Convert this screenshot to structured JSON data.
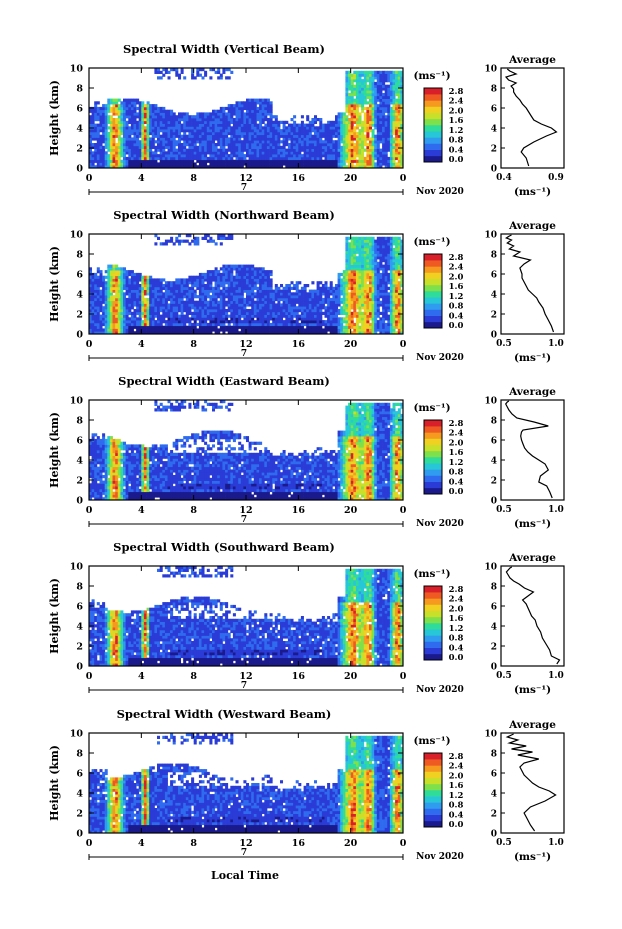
{
  "page": {
    "bottom_label": "Local Time"
  },
  "colors": {
    "palette": [
      "#1a1a8c",
      "#2a3bd6",
      "#2f6bef",
      "#2f9cef",
      "#27c7d8",
      "#2fdc9a",
      "#7ee04a",
      "#c8e02a",
      "#f0d020",
      "#f59a1f",
      "#ef5a23",
      "#d91f2a"
    ]
  },
  "panels": [
    {
      "title": "Spectral Width (Vertical Beam)",
      "ylabel": "Height (km)",
      "yticks": [
        "0",
        "2",
        "4",
        "6",
        "8",
        "10"
      ],
      "xticks": [
        "0",
        "4",
        "8",
        "12",
        "16",
        "20",
        "0"
      ],
      "day_marker": "7",
      "month_label": "Nov 2020",
      "cbar_unit": "(ms⁻¹)",
      "cbar_ticks": [
        "0.0",
        "0.4",
        "0.8",
        "1.2",
        "1.6",
        "2.0",
        "2.4",
        "2.8"
      ],
      "avg_title": "Average",
      "avg_xticks": [
        "0.4",
        "0.9"
      ],
      "avg_yticks": [
        "0",
        "2",
        "4",
        "6",
        "8",
        "10"
      ],
      "avg_xlabel": "(ms⁻¹)"
    },
    {
      "title": "Spectral Width (Northward Beam)",
      "ylabel": "Height (km)",
      "yticks": [
        "0",
        "2",
        "4",
        "6",
        "8",
        "10"
      ],
      "xticks": [
        "0",
        "4",
        "8",
        "12",
        "16",
        "20",
        "0"
      ],
      "day_marker": "7",
      "month_label": "Nov 2020",
      "cbar_unit": "(ms⁻¹)",
      "cbar_ticks": [
        "0.0",
        "0.4",
        "0.8",
        "1.2",
        "1.6",
        "2.0",
        "2.4",
        "2.8"
      ],
      "avg_title": "Average",
      "avg_xticks": [
        "0.5",
        "1.0"
      ],
      "avg_yticks": [
        "0",
        "2",
        "4",
        "6",
        "8",
        "10"
      ],
      "avg_xlabel": "(ms⁻¹)"
    },
    {
      "title": "Spectral Width (Eastward Beam)",
      "ylabel": "Height (km)",
      "yticks": [
        "0",
        "2",
        "4",
        "6",
        "8",
        "10"
      ],
      "xticks": [
        "0",
        "4",
        "8",
        "12",
        "16",
        "20",
        "0"
      ],
      "day_marker": "7",
      "month_label": "Nov 2020",
      "cbar_unit": "(ms⁻¹)",
      "cbar_ticks": [
        "0.0",
        "0.4",
        "0.8",
        "1.2",
        "1.6",
        "2.0",
        "2.4",
        "2.8"
      ],
      "avg_title": "Average",
      "avg_xticks": [
        "0.5",
        "1.0"
      ],
      "avg_yticks": [
        "0",
        "2",
        "4",
        "6",
        "8",
        "10"
      ],
      "avg_xlabel": "(ms⁻¹)"
    },
    {
      "title": "Spectral Width (Southward Beam)",
      "ylabel": "Height (km)",
      "yticks": [
        "0",
        "2",
        "4",
        "6",
        "8",
        "10"
      ],
      "xticks": [
        "0",
        "4",
        "8",
        "12",
        "16",
        "20",
        "0"
      ],
      "day_marker": "7",
      "month_label": "Nov 2020",
      "cbar_unit": "(ms⁻¹)",
      "cbar_ticks": [
        "0.0",
        "0.4",
        "0.8",
        "1.2",
        "1.6",
        "2.0",
        "2.4",
        "2.8"
      ],
      "avg_title": "Average",
      "avg_xticks": [
        "0.5",
        "1.0"
      ],
      "avg_yticks": [
        "0",
        "2",
        "4",
        "6",
        "8",
        "10"
      ],
      "avg_xlabel": "(ms⁻¹)"
    },
    {
      "title": "Spectral Width (Westward Beam)",
      "ylabel": "Height (km)",
      "yticks": [
        "0",
        "2",
        "4",
        "6",
        "8",
        "10"
      ],
      "xticks": [
        "0",
        "4",
        "8",
        "12",
        "16",
        "20",
        "0"
      ],
      "day_marker": "7",
      "month_label": "Nov 2020",
      "cbar_unit": "(ms⁻¹)",
      "cbar_ticks": [
        "0.0",
        "0.4",
        "0.8",
        "1.2",
        "1.6",
        "2.0",
        "2.4",
        "2.8"
      ],
      "avg_title": "Average",
      "avg_xticks": [
        "0.5",
        "1.0"
      ],
      "avg_yticks": [
        "0",
        "2",
        "4",
        "6",
        "8",
        "10"
      ],
      "avg_xlabel": "(ms⁻¹)"
    }
  ],
  "chart_data": [
    {
      "type": "heatmap",
      "title": "Spectral Width (Vertical Beam)",
      "xlabel": "",
      "ylabel": "Height (km)",
      "xlim": [
        0,
        24
      ],
      "ylim": [
        0,
        10
      ],
      "colorbar_range": [
        0.0,
        2.8
      ],
      "colorbar_unit": "(ms⁻¹)"
    },
    {
      "type": "line",
      "title": "Average",
      "xlabel": "(ms⁻¹)",
      "ylabel": "",
      "xlim": [
        0.4,
        0.9
      ],
      "ylim": [
        0,
        10
      ],
      "x": [
        0.62,
        0.6,
        0.56,
        0.58,
        0.66,
        0.76,
        0.84,
        0.8,
        0.72,
        0.66,
        0.64,
        0.62,
        0.6,
        0.57,
        0.55,
        0.52,
        0.5,
        0.5,
        0.48,
        0.52,
        0.46,
        0.44,
        0.52,
        0.47,
        0.45
      ],
      "y": [
        0.2,
        1.0,
        1.6,
        2.0,
        2.6,
        3.2,
        3.6,
        4.0,
        4.4,
        4.8,
        5.2,
        5.6,
        6.0,
        6.4,
        6.8,
        7.2,
        7.6,
        7.9,
        8.2,
        8.5,
        8.8,
        9.1,
        9.4,
        9.7,
        9.9
      ]
    },
    {
      "type": "heatmap",
      "title": "Spectral Width (Northward Beam)",
      "xlabel": "",
      "ylabel": "Height (km)",
      "xlim": [
        0,
        24
      ],
      "ylim": [
        0,
        10
      ],
      "colorbar_range": [
        0.0,
        2.8
      ],
      "colorbar_unit": "(ms⁻¹)"
    },
    {
      "type": "line",
      "title": "Average",
      "xlabel": "(ms⁻¹)",
      "ylabel": "",
      "xlim": [
        0.5,
        1.1
      ],
      "ylim": [
        0,
        10
      ],
      "x": [
        1.0,
        0.98,
        0.95,
        0.92,
        0.9,
        0.86,
        0.84,
        0.8,
        0.76,
        0.74,
        0.72,
        0.7,
        0.7,
        0.68,
        0.72,
        0.78,
        0.62,
        0.68,
        0.58,
        0.62,
        0.56,
        0.6,
        0.55,
        0.58,
        0.6
      ],
      "y": [
        0.2,
        0.8,
        1.4,
        2.0,
        2.6,
        3.2,
        3.6,
        4.0,
        4.4,
        4.8,
        5.2,
        5.6,
        6.0,
        6.6,
        7.0,
        7.4,
        7.8,
        8.2,
        8.5,
        8.8,
        9.1,
        9.4,
        9.6,
        9.8,
        9.9
      ]
    },
    {
      "type": "heatmap",
      "title": "Spectral Width (Eastward Beam)",
      "xlabel": "",
      "ylabel": "Height (km)",
      "xlim": [
        0,
        24
      ],
      "ylim": [
        0,
        10
      ],
      "colorbar_range": [
        0.0,
        2.8
      ],
      "colorbar_unit": "(ms⁻¹)"
    },
    {
      "type": "line",
      "title": "Average",
      "xlabel": "(ms⁻¹)",
      "ylabel": "",
      "xlim": [
        0.3,
        1.1
      ],
      "ylim": [
        0,
        10
      ],
      "x": [
        0.95,
        0.92,
        0.88,
        0.78,
        0.8,
        0.9,
        0.86,
        0.78,
        0.7,
        0.64,
        0.6,
        0.58,
        0.56,
        0.55,
        0.56,
        0.58,
        0.9,
        0.72,
        0.5,
        0.44,
        0.4,
        0.38,
        0.36,
        0.38,
        0.4
      ],
      "y": [
        0.2,
        0.8,
        1.4,
        1.8,
        2.4,
        3.0,
        3.6,
        4.0,
        4.4,
        4.8,
        5.2,
        5.6,
        6.0,
        6.4,
        6.8,
        7.0,
        7.4,
        7.8,
        8.2,
        8.6,
        9.0,
        9.3,
        9.6,
        9.8,
        9.9
      ]
    },
    {
      "type": "heatmap",
      "title": "Spectral Width (Southward Beam)",
      "xlabel": "",
      "ylabel": "Height (km)",
      "xlim": [
        0,
        24
      ],
      "ylim": [
        0,
        10
      ],
      "colorbar_range": [
        0.0,
        2.8
      ],
      "colorbar_unit": "(ms⁻¹)"
    },
    {
      "type": "line",
      "title": "Average",
      "xlabel": "(ms⁻¹)",
      "ylabel": "",
      "xlim": [
        0.3,
        1.0
      ],
      "ylim": [
        0,
        10
      ],
      "x": [
        0.92,
        0.95,
        0.86,
        0.84,
        0.8,
        0.76,
        0.74,
        0.7,
        0.68,
        0.64,
        0.62,
        0.6,
        0.58,
        0.54,
        0.6,
        0.66,
        0.56,
        0.5,
        0.44,
        0.4,
        0.38,
        0.36,
        0.38,
        0.4,
        0.42
      ],
      "y": [
        0.2,
        0.6,
        1.0,
        1.6,
        2.2,
        2.8,
        3.4,
        4.0,
        4.6,
        5.0,
        5.4,
        5.8,
        6.2,
        6.6,
        7.0,
        7.4,
        7.8,
        8.2,
        8.5,
        8.8,
        9.1,
        9.4,
        9.6,
        9.8,
        9.9
      ]
    },
    {
      "type": "heatmap",
      "title": "Spectral Width (Westward Beam)",
      "xlabel": "Local Time",
      "ylabel": "Height (km)",
      "xlim": [
        0,
        24
      ],
      "ylim": [
        0,
        10
      ],
      "colorbar_range": [
        0.0,
        2.8
      ],
      "colorbar_unit": "(ms⁻¹)"
    },
    {
      "type": "line",
      "title": "Average",
      "xlabel": "(ms⁻¹)",
      "ylabel": "",
      "xlim": [
        0.5,
        1.1
      ],
      "ylim": [
        0,
        10
      ],
      "x": [
        0.82,
        0.78,
        0.75,
        0.72,
        0.78,
        0.92,
        1.02,
        0.96,
        0.86,
        0.8,
        0.76,
        0.72,
        0.7,
        0.68,
        0.72,
        0.86,
        0.66,
        0.8,
        0.6,
        0.74,
        0.58,
        0.66,
        0.56,
        0.6,
        0.62
      ],
      "y": [
        0.2,
        0.8,
        1.4,
        2.0,
        2.6,
        3.2,
        3.8,
        4.2,
        4.6,
        5.0,
        5.4,
        5.8,
        6.2,
        6.6,
        7.0,
        7.4,
        7.8,
        8.1,
        8.4,
        8.7,
        9.0,
        9.3,
        9.6,
        9.8,
        9.9
      ]
    }
  ]
}
